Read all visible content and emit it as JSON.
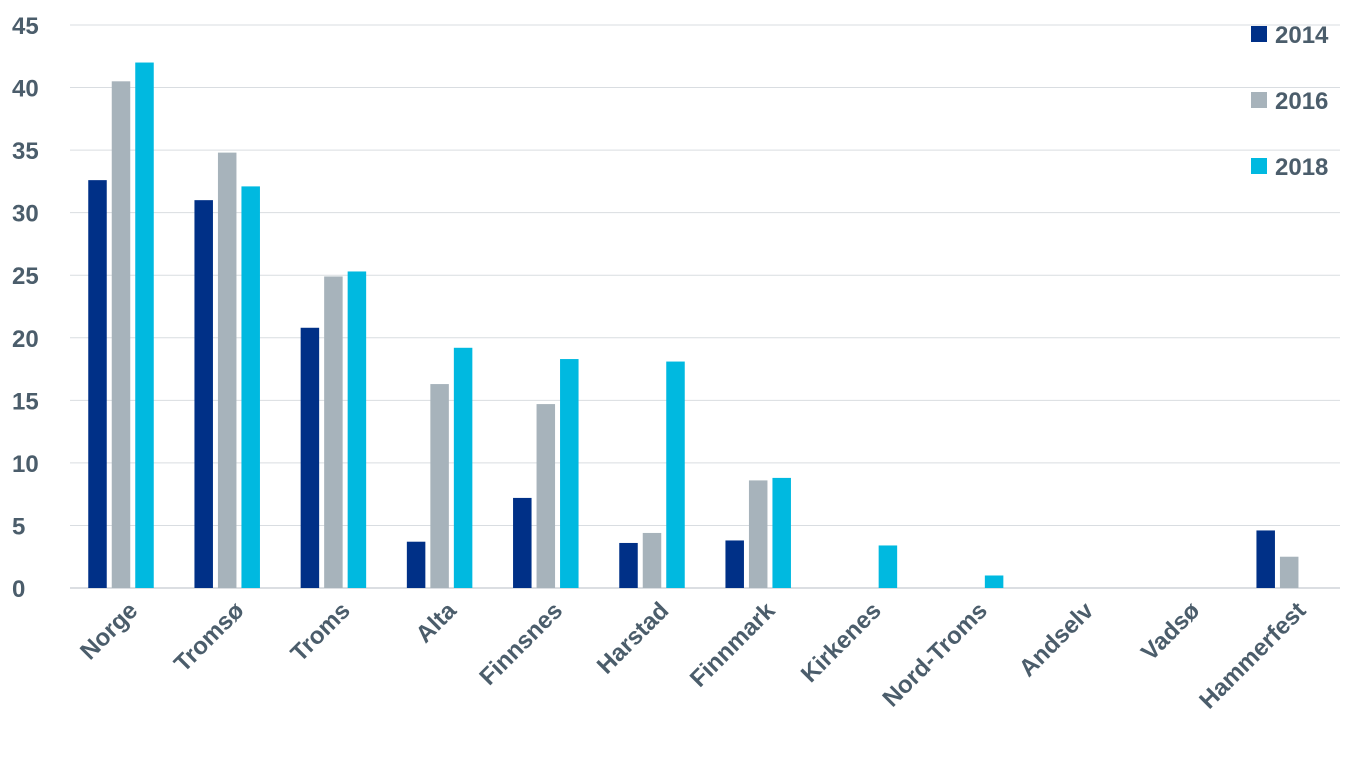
{
  "chart_data": {
    "type": "bar",
    "categories": [
      "Norge",
      "Tromsø",
      "Troms",
      "Alta",
      "Finnsnes",
      "Harstad",
      "Finnmark",
      "Kirkenes",
      "Nord-Troms",
      "Andselv",
      "Vadsø",
      "Hammerfest"
    ],
    "series": [
      {
        "name": "2014",
        "color": "#003087",
        "values": [
          32.6,
          31.0,
          20.8,
          3.7,
          7.2,
          3.6,
          3.8,
          0,
          0,
          0,
          0,
          4.6
        ]
      },
      {
        "name": "2016",
        "color": "#a7b3bb",
        "values": [
          40.5,
          34.8,
          24.9,
          16.3,
          14.7,
          4.4,
          8.6,
          0,
          0,
          0,
          0,
          2.5
        ]
      },
      {
        "name": "2018",
        "color": "#00b9e0",
        "values": [
          42.0,
          32.1,
          25.3,
          19.2,
          18.3,
          18.1,
          8.8,
          3.4,
          1.0,
          0,
          0,
          0
        ]
      }
    ],
    "ylim": [
      0,
      45
    ],
    "yticks": [
      "0",
      "5",
      "10",
      "15",
      "20",
      "25",
      "30",
      "35",
      "40",
      "45"
    ],
    "title": "",
    "xlabel": "",
    "ylabel": "",
    "grid": true,
    "legend_position": "top-right"
  }
}
